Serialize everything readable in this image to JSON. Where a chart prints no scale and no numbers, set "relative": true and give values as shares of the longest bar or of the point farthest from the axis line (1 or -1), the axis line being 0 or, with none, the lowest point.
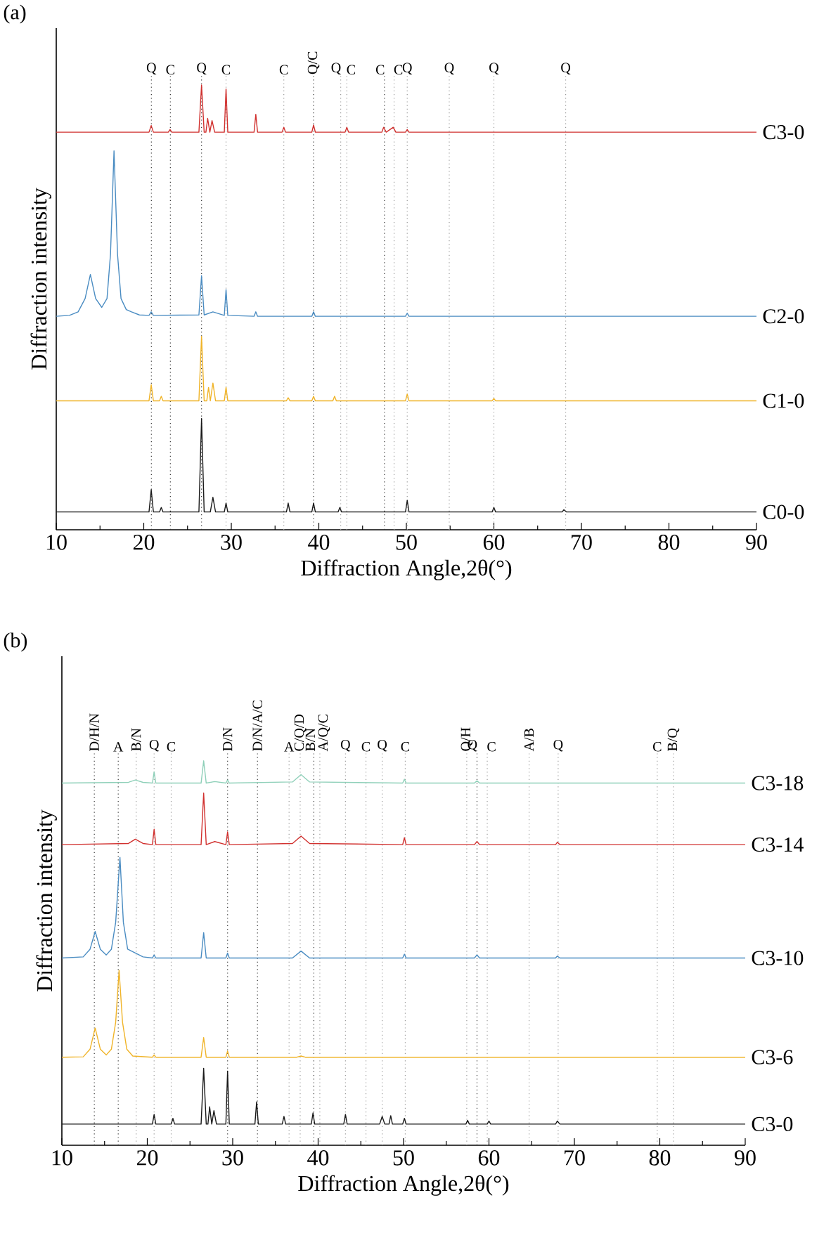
{
  "chart_data": [
    {
      "type": "line",
      "title": "(a)",
      "xlabel": "Diffraction Angle,2θ(°)",
      "ylabel": "Diffraction intensity",
      "relative": true,
      "xlim": [
        10,
        90
      ],
      "xticks": [
        10,
        20,
        30,
        40,
        50,
        60,
        70,
        80,
        90
      ],
      "series": [
        {
          "name": "C0-0",
          "color": "#1a1a1a",
          "x": [
            10,
            20.6,
            20.85,
            21.1,
            21.8,
            22,
            22.2,
            26.3,
            26.6,
            26.9,
            27.6,
            27.9,
            28.2,
            29.2,
            29.4,
            29.6,
            36.3,
            36.5,
            36.7,
            39.2,
            39.4,
            39.6,
            42.2,
            42.4,
            42.6,
            49.9,
            50.1,
            50.3,
            59.8,
            60,
            60.2,
            67.8,
            68,
            68.3,
            90
          ],
          "values": [
            0.04,
            0.04,
            0.09,
            0.04,
            0.04,
            0.05,
            0.04,
            0.04,
            0.25,
            0.04,
            0.04,
            0.073,
            0.04,
            0.04,
            0.06,
            0.04,
            0.04,
            0.06,
            0.04,
            0.04,
            0.06,
            0.04,
            0.04,
            0.05,
            0.04,
            0.04,
            0.066,
            0.04,
            0.04,
            0.05,
            0.04,
            0.04,
            0.045,
            0.04,
            0.04
          ]
        },
        {
          "name": "C1-0",
          "color": "#f0b429",
          "x": [
            10,
            20.6,
            20.85,
            21.1,
            21.8,
            22,
            22.2,
            26.3,
            26.6,
            26.9,
            27.2,
            27.4,
            27.6,
            27.9,
            28.2,
            29.2,
            29.4,
            29.6,
            36.3,
            36.5,
            36.7,
            39.2,
            39.4,
            39.6,
            41.6,
            41.8,
            42,
            49.9,
            50.1,
            50.3,
            59.8,
            60,
            60.2,
            90
          ],
          "values": [
            0.29,
            0.29,
            0.326,
            0.29,
            0.29,
            0.3,
            0.29,
            0.29,
            0.435,
            0.29,
            0.29,
            0.32,
            0.29,
            0.33,
            0.29,
            0.29,
            0.32,
            0.29,
            0.29,
            0.297,
            0.29,
            0.29,
            0.3,
            0.29,
            0.29,
            0.3,
            0.29,
            0.29,
            0.305,
            0.29,
            0.29,
            0.295,
            0.29,
            0.29
          ]
        },
        {
          "name": "C2-0",
          "color": "#4a8cc2",
          "x": [
            10,
            11.5,
            12.5,
            13.3,
            13.9,
            14.5,
            15.2,
            15.8,
            16.2,
            16.6,
            17,
            17.4,
            18,
            18.6,
            19.5,
            20.6,
            20.85,
            21.1,
            26.3,
            26.6,
            26.9,
            27.9,
            29.2,
            29.4,
            29.6,
            32.6,
            32.8,
            33,
            39.2,
            39.4,
            39.6,
            49.9,
            50.1,
            50.3,
            90
          ],
          "values": [
            0.48,
            0.482,
            0.49,
            0.52,
            0.574,
            0.52,
            0.5,
            0.52,
            0.62,
            0.852,
            0.62,
            0.52,
            0.495,
            0.49,
            0.483,
            0.482,
            0.49,
            0.482,
            0.483,
            0.571,
            0.483,
            0.49,
            0.482,
            0.54,
            0.482,
            0.48,
            0.49,
            0.48,
            0.48,
            0.49,
            0.48,
            0.48,
            0.487,
            0.48,
            0.48
          ]
        },
        {
          "name": "C3-0",
          "color": "#d1312f",
          "x": [
            10,
            20.6,
            20.85,
            21.1,
            22.8,
            23,
            23.2,
            26.3,
            26.6,
            26.9,
            27.1,
            27.3,
            27.55,
            27.8,
            28.1,
            29.2,
            29.4,
            29.6,
            32.6,
            32.8,
            33,
            35.8,
            36,
            36.2,
            39.2,
            39.4,
            39.6,
            43,
            43.2,
            43.4,
            47.2,
            47.4,
            47.7,
            48.5,
            48.8,
            49.9,
            50.1,
            50.3,
            90
          ],
          "values": [
            0.894,
            0.894,
            0.909,
            0.894,
            0.894,
            0.9,
            0.894,
            0.894,
            1.0,
            0.894,
            0.894,
            0.925,
            0.894,
            0.92,
            0.894,
            0.894,
            0.991,
            0.894,
            0.894,
            0.934,
            0.894,
            0.894,
            0.905,
            0.894,
            0.894,
            0.91,
            0.894,
            0.894,
            0.905,
            0.894,
            0.894,
            0.905,
            0.894,
            0.905,
            0.894,
            0.894,
            0.9,
            0.894,
            0.894
          ]
        }
      ],
      "ref_lines": [
        {
          "axis": "x",
          "value": 20.87,
          "label": "Q",
          "color": "#333333",
          "line_style": "dotted"
        },
        {
          "axis": "x",
          "value": 23.04,
          "label": "C",
          "color": "#333333",
          "line_style": "dotted"
        },
        {
          "axis": "x",
          "value": 26.6,
          "label": "Q",
          "color": "#333333",
          "line_style": "dotted"
        },
        {
          "axis": "x",
          "value": 29.4,
          "label": "C",
          "color": "#999999",
          "line_style": "dotted"
        },
        {
          "axis": "x",
          "value": 36.0,
          "label": "C",
          "color": "#999999",
          "line_style": "dotted"
        },
        {
          "axis": "x",
          "value": 39.4,
          "label": "Q/C",
          "color": "#333333",
          "line_style": "dotted"
        },
        {
          "axis": "x",
          "value": 42.5,
          "label": "Q",
          "color": "#999999",
          "line_style": "dotted"
        },
        {
          "axis": "x",
          "value": 43.2,
          "label": "C",
          "color": "#999999",
          "line_style": "dotted"
        },
        {
          "axis": "x",
          "value": 47.5,
          "label": "C",
          "color": "#333333",
          "line_style": "dotted"
        },
        {
          "axis": "x",
          "value": 48.6,
          "label": "C",
          "color": "#999999",
          "line_style": "dotted"
        },
        {
          "axis": "x",
          "value": 50.1,
          "label": "Q",
          "color": "#999999",
          "line_style": "dotted"
        },
        {
          "axis": "x",
          "value": 54.9,
          "label": "Q",
          "color": "#999999",
          "line_style": "dotted"
        },
        {
          "axis": "x",
          "value": 60.0,
          "label": "Q",
          "color": "#999999",
          "line_style": "dotted"
        },
        {
          "axis": "x",
          "value": 68.2,
          "label": "Q",
          "color": "#999999",
          "line_style": "dotted"
        }
      ]
    },
    {
      "type": "line",
      "title": "(b)",
      "xlabel": "Diffraction Angle,2θ(°)",
      "ylabel": "Diffraction intensity",
      "relative": true,
      "xlim": [
        10,
        90
      ],
      "xticks": [
        10,
        20,
        30,
        40,
        50,
        60,
        70,
        80,
        90
      ],
      "series": [
        {
          "name": "C3-0",
          "color": "#1a1a1a",
          "x": [
            10,
            20.6,
            20.8,
            21,
            22.8,
            23,
            23.2,
            26.3,
            26.6,
            26.9,
            27.1,
            27.3,
            27.55,
            27.8,
            28.1,
            29.2,
            29.4,
            29.6,
            32.6,
            32.8,
            33,
            35.8,
            36,
            36.2,
            39.2,
            39.4,
            39.6,
            43,
            43.2,
            43.4,
            47.2,
            47.5,
            47.8,
            48.3,
            48.5,
            48.7,
            49.9,
            50.1,
            50.3,
            57.3,
            57.5,
            57.7,
            59.8,
            60,
            60.2,
            67.8,
            68,
            68.3,
            90
          ],
          "values": [
            0.055,
            0.055,
            0.08,
            0.055,
            0.055,
            0.07,
            0.055,
            0.055,
            0.2,
            0.055,
            0.055,
            0.1,
            0.055,
            0.09,
            0.055,
            0.055,
            0.193,
            0.055,
            0.055,
            0.113,
            0.055,
            0.055,
            0.075,
            0.055,
            0.055,
            0.084,
            0.055,
            0.055,
            0.08,
            0.055,
            0.055,
            0.075,
            0.055,
            0.055,
            0.077,
            0.055,
            0.055,
            0.07,
            0.055,
            0.055,
            0.065,
            0.055,
            0.055,
            0.063,
            0.055,
            0.055,
            0.063,
            0.055,
            0.055
          ]
        },
        {
          "name": "C3-6",
          "color": "#f0b429",
          "x": [
            10,
            12.5,
            13.3,
            13.9,
            14.5,
            15.2,
            15.8,
            16.3,
            16.7,
            17.1,
            17.6,
            18.3,
            20.6,
            20.8,
            21,
            26.3,
            26.6,
            26.9,
            29.2,
            29.4,
            29.6,
            37.5,
            38,
            38.5,
            90
          ],
          "values": [
            0.229,
            0.23,
            0.25,
            0.305,
            0.25,
            0.235,
            0.25,
            0.32,
            0.455,
            0.32,
            0.25,
            0.232,
            0.229,
            0.235,
            0.229,
            0.229,
            0.28,
            0.229,
            0.229,
            0.245,
            0.229,
            0.229,
            0.232,
            0.229,
            0.229
          ]
        },
        {
          "name": "C3-10",
          "color": "#4a8cc2",
          "x": [
            10,
            12.5,
            13.3,
            13.9,
            14.5,
            15.2,
            15.8,
            16.3,
            16.8,
            17.2,
            17.7,
            18.6,
            19.5,
            20.6,
            20.8,
            21,
            26.3,
            26.6,
            26.9,
            29.2,
            29.4,
            29.6,
            37,
            38,
            39,
            49.9,
            50.1,
            50.3,
            58.3,
            58.6,
            58.9,
            67.8,
            68,
            68.3,
            90
          ],
          "values": [
            0.487,
            0.49,
            0.51,
            0.556,
            0.51,
            0.495,
            0.51,
            0.58,
            0.749,
            0.58,
            0.51,
            0.5,
            0.49,
            0.487,
            0.495,
            0.487,
            0.487,
            0.553,
            0.487,
            0.487,
            0.5,
            0.487,
            0.487,
            0.505,
            0.487,
            0.487,
            0.497,
            0.487,
            0.487,
            0.495,
            0.487,
            0.487,
            0.492,
            0.487,
            0.487
          ]
        },
        {
          "name": "C3-14",
          "color": "#d1312f",
          "x": [
            10,
            17.8,
            18.6,
            19.5,
            20.6,
            20.8,
            21,
            26.3,
            26.6,
            26.9,
            27.9,
            29.2,
            29.4,
            29.6,
            37,
            38,
            39,
            49.9,
            50.1,
            50.3,
            58.3,
            58.6,
            58.9,
            67.8,
            68,
            68.3,
            90
          ],
          "values": [
            0.782,
            0.785,
            0.796,
            0.785,
            0.782,
            0.822,
            0.782,
            0.782,
            0.916,
            0.782,
            0.79,
            0.782,
            0.815,
            0.782,
            0.785,
            0.804,
            0.785,
            0.782,
            0.8,
            0.782,
            0.782,
            0.79,
            0.782,
            0.782,
            0.788,
            0.782,
            0.782
          ]
        },
        {
          "name": "C3-18",
          "color": "#8fd0b9",
          "x": [
            10,
            17.8,
            18.6,
            19.5,
            20.6,
            20.8,
            21,
            26.3,
            26.6,
            26.9,
            27.9,
            29.2,
            29.4,
            29.6,
            37,
            38,
            39,
            49.9,
            50.1,
            50.3,
            58.3,
            58.6,
            58.9,
            90
          ],
          "values": [
            0.942,
            0.944,
            0.95,
            0.944,
            0.942,
            0.971,
            0.942,
            0.942,
            1.0,
            0.942,
            0.946,
            0.942,
            0.95,
            0.942,
            0.945,
            0.964,
            0.945,
            0.942,
            0.952,
            0.942,
            0.942,
            0.948,
            0.942,
            0.942
          ]
        }
      ],
      "ref_lines": [
        {
          "axis": "x",
          "value": 13.8,
          "label": "D/H/N",
          "color": "#333333",
          "line_style": "dotted"
        },
        {
          "axis": "x",
          "value": 16.6,
          "label": "A",
          "color": "#333333",
          "line_style": "dotted"
        },
        {
          "axis": "x",
          "value": 18.7,
          "label": "B/N",
          "color": "#999999",
          "line_style": "dotted"
        },
        {
          "axis": "x",
          "value": 20.8,
          "label": "Q",
          "color": "#999999",
          "line_style": "dotted"
        },
        {
          "axis": "x",
          "value": 22.8,
          "label": "C",
          "color": "#999999",
          "line_style": "dotted"
        },
        {
          "axis": "x",
          "value": 29.4,
          "label": "D/N",
          "color": "#333333",
          "line_style": "dotted"
        },
        {
          "axis": "x",
          "value": 32.9,
          "label": "D/N/A/C",
          "color": "#333333",
          "line_style": "dotted"
        },
        {
          "axis": "x",
          "value": 36.6,
          "label": "A",
          "color": "#999999",
          "line_style": "dotted"
        },
        {
          "axis": "x",
          "value": 37.9,
          "label": "C/Q/D",
          "color": "#999999",
          "line_style": "dotted"
        },
        {
          "axis": "x",
          "value": 39.5,
          "label": "B/N",
          "color": "#333333",
          "line_style": "dotted"
        },
        {
          "axis": "x",
          "value": 40.2,
          "label": "A/Q/C",
          "color": "#999999",
          "line_style": "dotted"
        },
        {
          "axis": "x",
          "value": 43.2,
          "label": "Q",
          "color": "#999999",
          "line_style": "dotted"
        },
        {
          "axis": "x",
          "value": 45.6,
          "label": "C",
          "color": "#999999",
          "line_style": "dotted"
        },
        {
          "axis": "x",
          "value": 47.5,
          "label": "Q",
          "color": "#999999",
          "line_style": "dotted"
        },
        {
          "axis": "x",
          "value": 50.2,
          "label": "C",
          "color": "#999999",
          "line_style": "dotted"
        },
        {
          "axis": "x",
          "value": 57.4,
          "label": "Q/H",
          "color": "#999999",
          "line_style": "dotted"
        },
        {
          "axis": "x",
          "value": 58.6,
          "label": "Q",
          "color": "#333333",
          "line_style": "dotted"
        },
        {
          "axis": "x",
          "value": 59.8,
          "label": "C",
          "color": "#999999",
          "line_style": "dotted"
        },
        {
          "axis": "x",
          "value": 64.7,
          "label": "A/B",
          "color": "#999999",
          "line_style": "dotted"
        },
        {
          "axis": "x",
          "value": 68.1,
          "label": "Q",
          "color": "#999999",
          "line_style": "dotted"
        },
        {
          "axis": "x",
          "value": 79.7,
          "label": "C",
          "color": "#999999",
          "line_style": "dotted"
        },
        {
          "axis": "x",
          "value": 81.6,
          "label": "B/Q",
          "color": "#999999",
          "line_style": "dotted"
        }
      ]
    }
  ]
}
